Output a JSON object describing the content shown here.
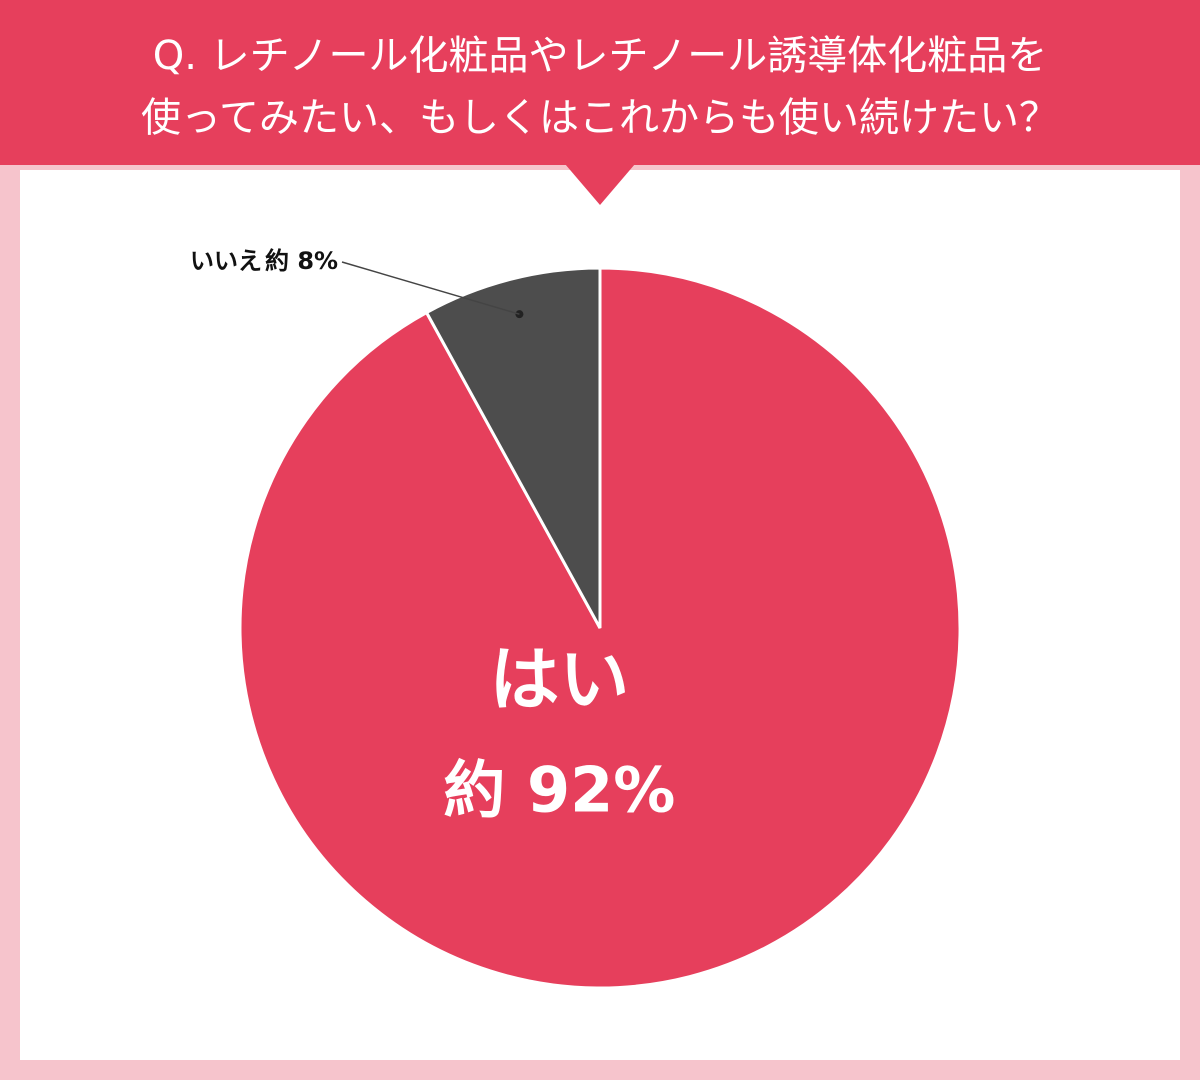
{
  "chart_data": {
    "type": "pie",
    "title": [
      "Q. レチノール化粧品やレチノール誘導体化粧品を",
      "使ってみたい、もしくはこれからも使い続けたい？"
    ],
    "categories": [
      "はい",
      "いいえ"
    ],
    "values": [
      92,
      8
    ],
    "value_labels": [
      "約 92%",
      "約 8%"
    ],
    "colors": [
      "#e63f5c",
      "#4d4d4d"
    ]
  }
}
